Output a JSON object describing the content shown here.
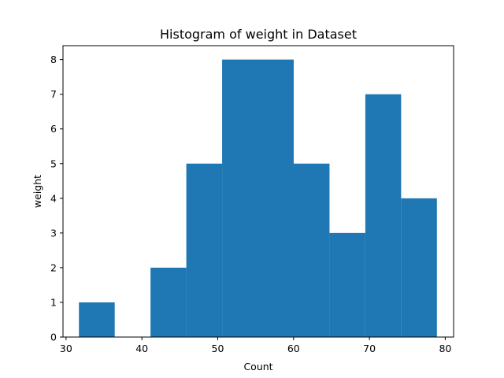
{
  "chart_data": {
    "type": "bar",
    "title": "Histogram of weight in Dataset",
    "xlabel": "Count",
    "ylabel": "weight",
    "xlim": [
      29.6,
      81.1
    ],
    "ylim": [
      0,
      8.4
    ],
    "xticks": [
      30,
      40,
      50,
      60,
      70,
      80
    ],
    "yticks": [
      0,
      1,
      2,
      3,
      4,
      5,
      6,
      7,
      8
    ],
    "bins": [
      {
        "x0": 31.7,
        "x1": 36.42,
        "count": 1
      },
      {
        "x0": 36.42,
        "x1": 41.14,
        "count": 0
      },
      {
        "x0": 41.14,
        "x1": 45.86,
        "count": 2
      },
      {
        "x0": 45.86,
        "x1": 50.58,
        "count": 5
      },
      {
        "x0": 50.58,
        "x1": 55.3,
        "count": 8
      },
      {
        "x0": 55.3,
        "x1": 60.02,
        "count": 8
      },
      {
        "x0": 60.02,
        "x1": 64.74,
        "count": 5
      },
      {
        "x0": 64.74,
        "x1": 69.46,
        "count": 3
      },
      {
        "x0": 69.46,
        "x1": 74.18,
        "count": 7
      },
      {
        "x0": 74.18,
        "x1": 78.9,
        "count": 4
      }
    ],
    "bar_color": "#1f77b4",
    "grid": false,
    "legend": "none"
  }
}
